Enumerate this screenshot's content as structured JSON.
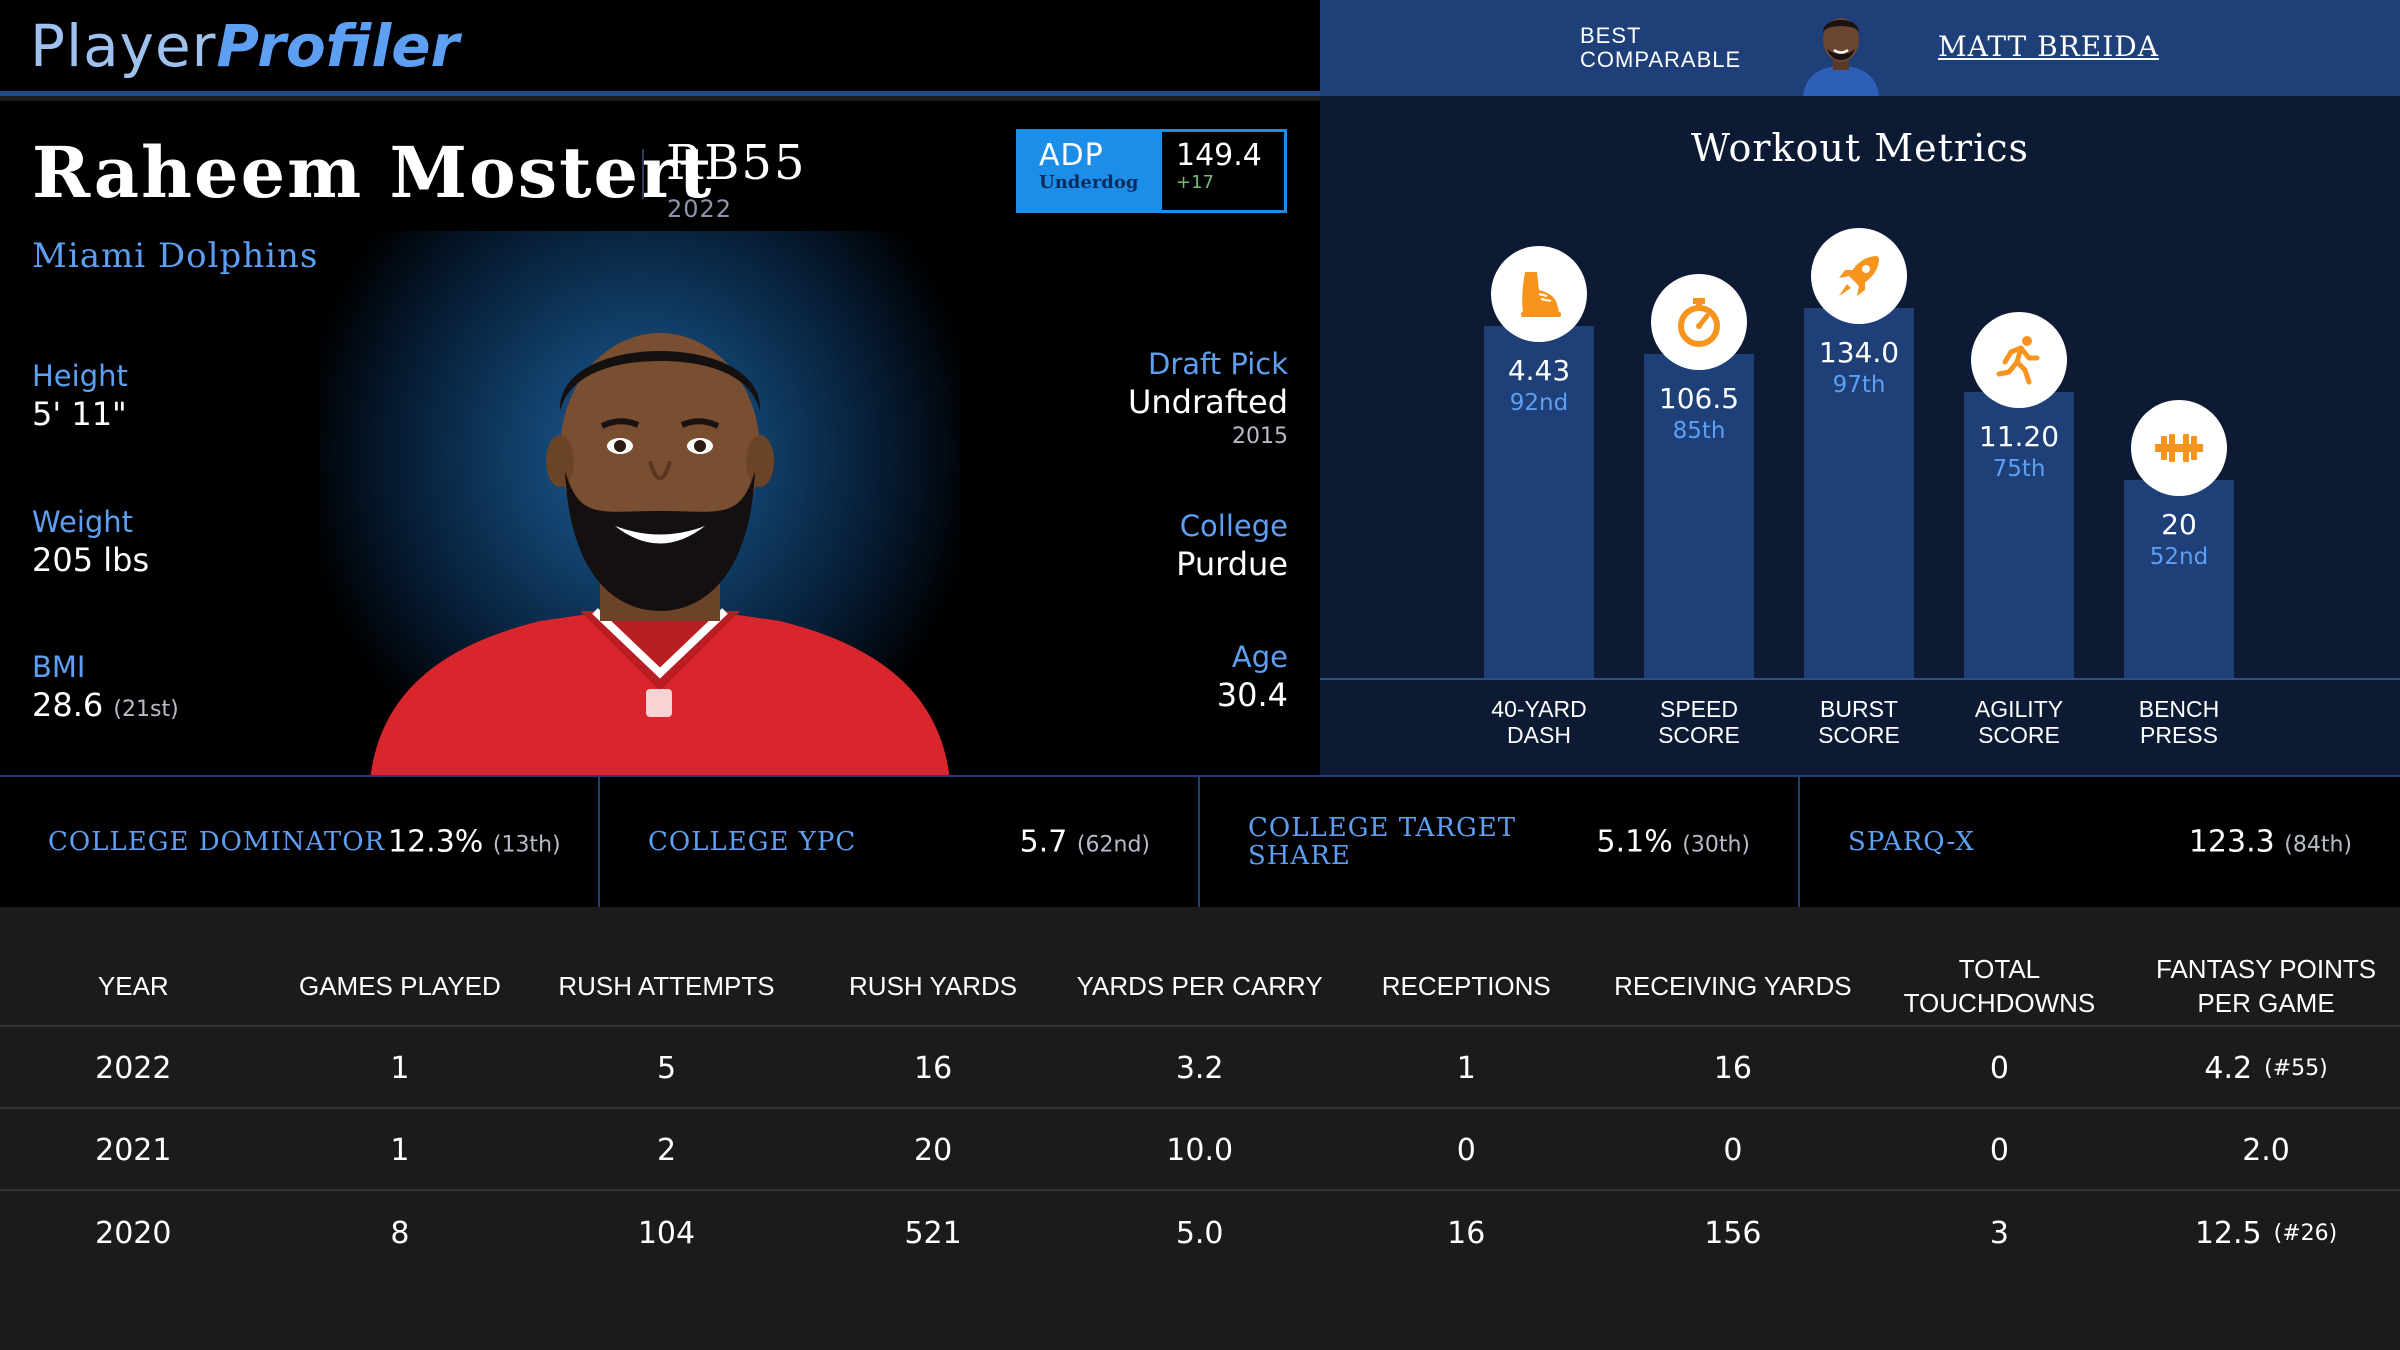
{
  "brand": {
    "logo_part1": "Player",
    "logo_part2": "Profiler"
  },
  "comparable": {
    "label_line1": "BEST",
    "label_line2": "COMPARABLE",
    "name": "MATT BREIDA"
  },
  "player": {
    "name": "Raheem Mostert",
    "position_rank": "RB55",
    "season": "2022",
    "team": "Miami Dolphins",
    "adp": {
      "label": "ADP",
      "source": "Underdog",
      "value": "149.4",
      "change": "+17"
    },
    "height": {
      "label": "Height",
      "value": "5' 11\""
    },
    "weight": {
      "label": "Weight",
      "value": "205 lbs"
    },
    "bmi": {
      "label": "BMI",
      "value": "28.6",
      "rank": "(21st)"
    },
    "draft": {
      "label": "Draft Pick",
      "value": "Undrafted",
      "year": "2015"
    },
    "college": {
      "label": "College",
      "value": "Purdue"
    },
    "age": {
      "label": "Age",
      "value": "30.4"
    }
  },
  "workout": {
    "title": "Workout Metrics",
    "metrics": [
      {
        "icon": "shoe-icon",
        "value": "4.43",
        "percentile_label": "92nd",
        "percentile": 92,
        "label_line1": "40-YARD",
        "label_line2": "DASH"
      },
      {
        "icon": "stopwatch-icon",
        "value": "106.5",
        "percentile_label": "85th",
        "percentile": 85,
        "label_line1": "SPEED",
        "label_line2": "SCORE"
      },
      {
        "icon": "rocket-icon",
        "value": "134.0",
        "percentile_label": "97th",
        "percentile": 97,
        "label_line1": "BURST",
        "label_line2": "SCORE"
      },
      {
        "icon": "runner-icon",
        "value": "11.20",
        "percentile_label": "75th",
        "percentile": 75,
        "label_line1": "AGILITY",
        "label_line2": "SCORE"
      },
      {
        "icon": "dumbbell-icon",
        "value": "20",
        "percentile_label": "52nd",
        "percentile": 52,
        "label_line1": "BENCH",
        "label_line2": "PRESS"
      }
    ],
    "accent_color": "#f7941d",
    "bar_color": "#1e3f78"
  },
  "college_stats": [
    {
      "label": "COLLEGE DOMINATOR",
      "value": "12.3%",
      "rank": "(13th)"
    },
    {
      "label": "COLLEGE YPC",
      "value": "5.7",
      "rank": "(62nd)"
    },
    {
      "label_line1": "COLLEGE TARGET",
      "label_line2": "SHARE",
      "value": "5.1%",
      "rank": "(30th)"
    },
    {
      "label": "SPARQ-X",
      "value": "123.3",
      "rank": "(84th)"
    }
  ],
  "table": {
    "headers": [
      "YEAR",
      "GAMES PLAYED",
      "RUSH ATTEMPTS",
      "RUSH YARDS",
      "YARDS PER CARRY",
      "RECEPTIONS",
      "RECEIVING YARDS",
      "TOTAL TOUCHDOWNS",
      "FANTASY POINTS PER GAME"
    ],
    "rows": [
      {
        "year": "2022",
        "games": "1",
        "rush_att": "5",
        "rush_yds": "16",
        "ypc": "3.2",
        "rec": "1",
        "rec_yds": "16",
        "td": "0",
        "fppg": "4.2",
        "fppg_rank": "(#55)"
      },
      {
        "year": "2021",
        "games": "1",
        "rush_att": "2",
        "rush_yds": "20",
        "ypc": "10.0",
        "rec": "0",
        "rec_yds": "0",
        "td": "0",
        "fppg": "2.0",
        "fppg_rank": ""
      },
      {
        "year": "2020",
        "games": "8",
        "rush_att": "104",
        "rush_yds": "521",
        "ypc": "5.0",
        "rec": "16",
        "rec_yds": "156",
        "td": "3",
        "fppg": "12.5",
        "fppg_rank": "(#26)"
      }
    ]
  },
  "colors": {
    "brand_blue": "#5d9ff2",
    "adp_blue": "#1c8ee8",
    "panel_navy": "#1e3f78",
    "positive_green": "#6fbe74"
  }
}
